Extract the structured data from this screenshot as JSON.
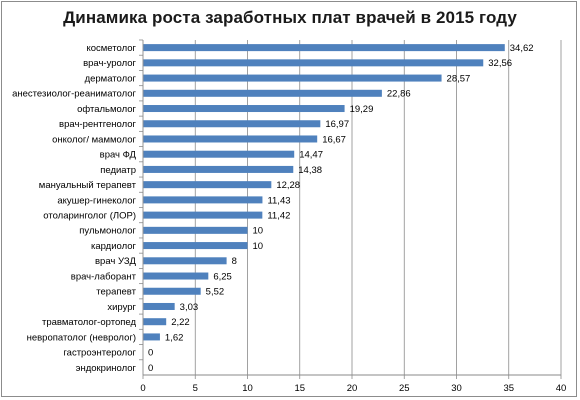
{
  "chart_data": {
    "type": "bar",
    "orientation": "horizontal",
    "title": "Динамика роста заработных плат врачей в 2015 году",
    "xlabel": "",
    "ylabel": "",
    "xlim": [
      0,
      40
    ],
    "xticks": [
      "0",
      "5",
      "10",
      "15",
      "20",
      "25",
      "30",
      "35",
      "40"
    ],
    "grid": "vertical",
    "legend": "none",
    "bar_color": "#4f81bd",
    "categories": [
      "косметолог",
      "врач-уролог",
      "дерматолог",
      "анестезиолог-реаниматолог",
      "офтальмолог",
      "врач-рентгенолог",
      "онколог/ маммолог",
      "врач ФД",
      "педиатр",
      "мануальный терапевт",
      "акушер-гинеколог",
      "отоларинголог (ЛОР)",
      "пульмонолог",
      "кардиолог",
      "врач УЗД",
      "врач-лаборант",
      "терапевт",
      "хирург",
      "травматолог-ортопед",
      "невропатолог (невролог)",
      "гастроэнтеролог",
      "эндокринолог"
    ],
    "values": [
      34.62,
      32.56,
      28.57,
      22.86,
      19.29,
      16.97,
      16.67,
      14.47,
      14.38,
      12.28,
      11.43,
      11.42,
      10,
      10,
      8,
      6.25,
      5.52,
      3.03,
      2.22,
      1.62,
      0,
      0
    ],
    "value_labels": [
      "34,62",
      "32,56",
      "28,57",
      "22,86",
      "19,29",
      "16,97",
      "16,67",
      "14,47",
      "14,38",
      "12,28",
      "11,43",
      "11,42",
      "10",
      "10",
      "8",
      "6,25",
      "5,52",
      "3,03",
      "2,22",
      "1,62",
      "0",
      "0"
    ]
  }
}
